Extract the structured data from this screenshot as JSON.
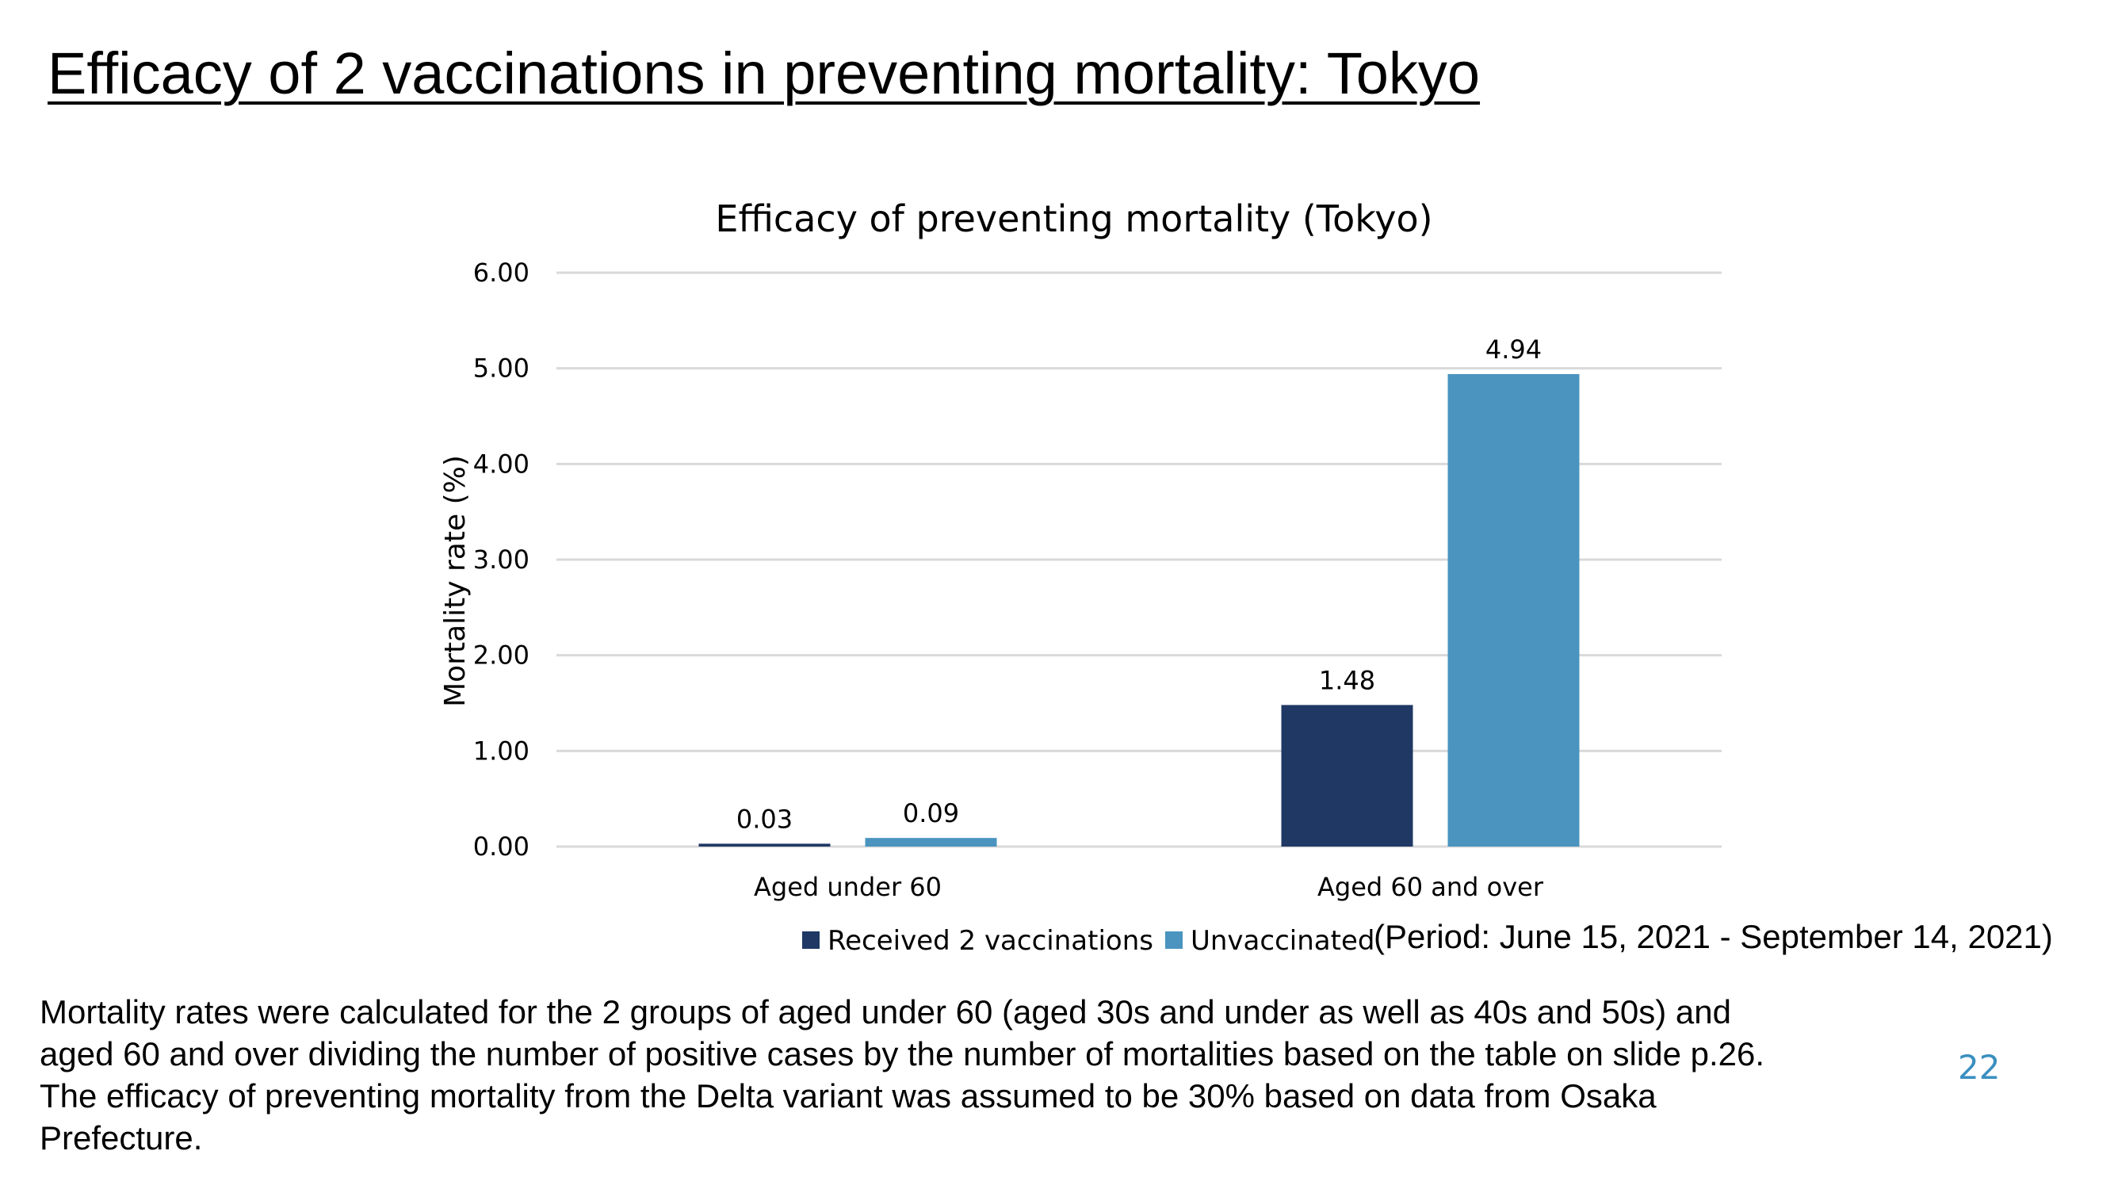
{
  "slide": {
    "title": "Efficacy of 2 vaccinations in preventing mortality: Tokyo",
    "period_note": "(Period: June 15, 2021 - September 14, 2021)",
    "footnote_lines": [
      "Mortality rates were calculated for the 2 groups of aged under 60 (aged 30s and under as well as 40s and 50s) and",
      "aged 60 and over dividing the number of positive cases by the number of mortalities based on the table on slide p.26.",
      "The efficacy of preventing mortality from the Delta variant was assumed to be 30% based on data from Osaka",
      "Prefecture."
    ],
    "page_number": "22",
    "page_number_color": "#3a8fbf"
  },
  "chart_data": {
    "type": "bar",
    "title": "Efficacy of preventing mortality (Tokyo)",
    "xlabel": "",
    "ylabel": "Mortality rate (%)",
    "categories": [
      "Aged under 60",
      "Aged 60 and over"
    ],
    "series": [
      {
        "name": "Received 2 vaccinations",
        "values": [
          0.03,
          1.48
        ],
        "labels": [
          "0.03",
          "1.48"
        ],
        "color": "#1f3864"
      },
      {
        "name": "Unvaccinated",
        "values": [
          0.09,
          4.94
        ],
        "labels": [
          "0.09",
          "4.94"
        ],
        "color": "#4a94bf"
      }
    ],
    "ylim": [
      0,
      6
    ],
    "yticks": [
      "0.00",
      "1.00",
      "2.00",
      "3.00",
      "4.00",
      "5.00",
      "6.00"
    ],
    "grid": true,
    "gridline_color": "#d9d9d9",
    "legend_position": "bottom"
  }
}
